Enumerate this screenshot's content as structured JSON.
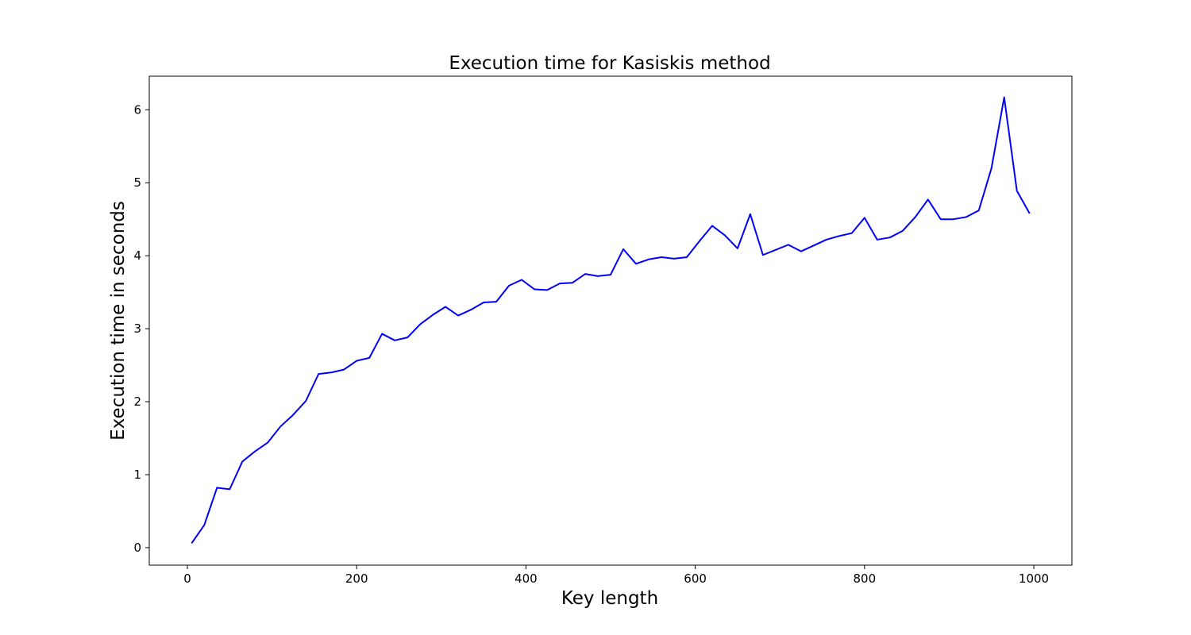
{
  "chart_data": {
    "type": "line",
    "title": "Execution time for Kasiskis method",
    "xlabel": "Key length",
    "ylabel": "Execution time in seconds",
    "xlim": [
      -45,
      1045
    ],
    "ylim": [
      -0.24,
      6.46
    ],
    "xticks": [
      0,
      200,
      400,
      600,
      800,
      1000
    ],
    "yticks": [
      0,
      1,
      2,
      3,
      4,
      5,
      6
    ],
    "grid": false,
    "series": [
      {
        "color": "#0000ff",
        "x": [
          5,
          20,
          35,
          50,
          65,
          80,
          95,
          110,
          125,
          140,
          155,
          170,
          185,
          200,
          215,
          230,
          245,
          260,
          275,
          290,
          305,
          320,
          335,
          350,
          365,
          380,
          395,
          410,
          425,
          440,
          455,
          470,
          485,
          500,
          515,
          530,
          545,
          560,
          575,
          590,
          605,
          620,
          635,
          650,
          665,
          680,
          695,
          710,
          725,
          740,
          755,
          770,
          785,
          800,
          815,
          830,
          845,
          860,
          875,
          890,
          905,
          920,
          935,
          950,
          965,
          980,
          995
        ],
        "y": [
          0.06,
          0.31,
          0.82,
          0.8,
          1.18,
          1.32,
          1.44,
          1.66,
          1.82,
          2.01,
          2.38,
          2.4,
          2.44,
          2.56,
          2.6,
          2.93,
          2.84,
          2.88,
          3.06,
          3.19,
          3.3,
          3.18,
          3.26,
          3.36,
          3.37,
          3.59,
          3.67,
          3.54,
          3.53,
          3.62,
          3.63,
          3.75,
          3.72,
          3.74,
          4.09,
          3.89,
          3.95,
          3.98,
          3.96,
          3.98,
          4.2,
          4.41,
          4.28,
          4.1,
          4.57,
          4.01,
          4.08,
          4.15,
          4.06,
          4.14,
          4.22,
          4.27,
          4.31,
          4.52,
          4.22,
          4.25,
          4.34,
          4.53,
          4.77,
          4.5,
          4.5,
          4.53,
          4.62,
          5.2,
          6.17,
          4.89,
          4.58
        ]
      }
    ]
  }
}
